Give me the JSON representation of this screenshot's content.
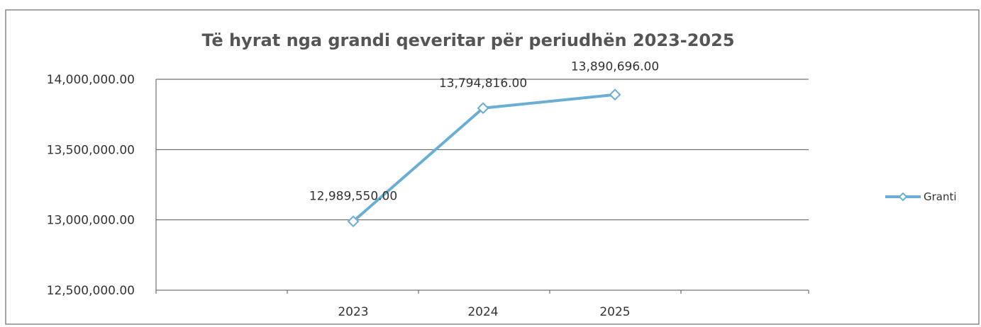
{
  "chart_data": {
    "type": "line",
    "title": "Të hyrat nga grandi qeveritar për periudhën  2023-2025",
    "categories": [
      "2023",
      "2024",
      "2025"
    ],
    "series": [
      {
        "name": "Granti",
        "values": [
          12989550.0,
          13794816.0,
          13890696.0
        ],
        "color": "#6aaed6"
      }
    ],
    "data_labels": [
      "12,989,550.00",
      "13,794,816.00",
      "13,890,696.00"
    ],
    "yticks": [
      {
        "value": 12500000,
        "label": "12,500,000.00"
      },
      {
        "value": 13000000,
        "label": "13,000,000.00"
      },
      {
        "value": 13500000,
        "label": "13,500,000.00"
      },
      {
        "value": 14000000,
        "label": "14,000,000.00"
      }
    ],
    "ylim": [
      12500000,
      14000000
    ],
    "grid": true,
    "legend_position": "right",
    "colors": {
      "gridline": "#555555",
      "border": "#888888",
      "text": "#333333"
    }
  }
}
